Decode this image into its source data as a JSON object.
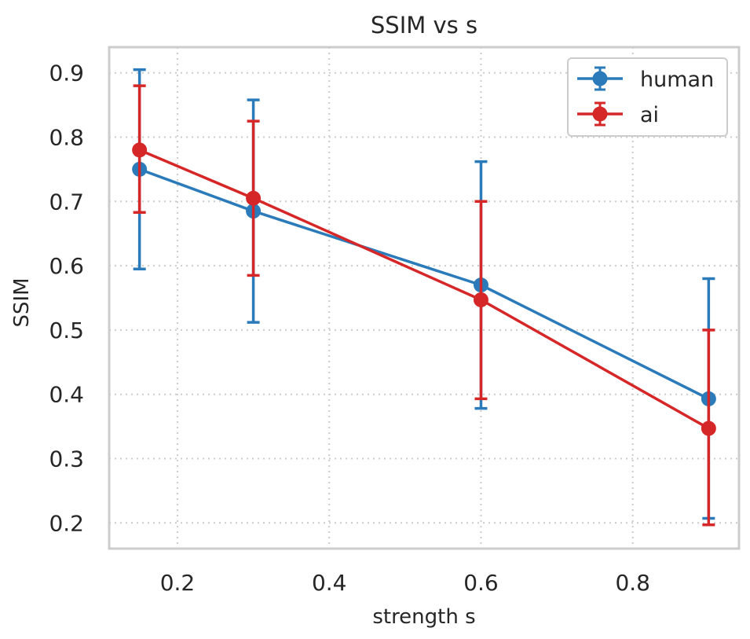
{
  "chart_data": {
    "type": "line",
    "title": "SSIM vs s",
    "xlabel": "strength s",
    "ylabel": "SSIM",
    "xlim": [
      0.11,
      0.94
    ],
    "ylim": [
      0.16,
      0.94
    ],
    "xticks": [
      0.2,
      0.4,
      0.6,
      0.8
    ],
    "xtick_labels": [
      "0.2",
      "0.4",
      "0.6",
      "0.8"
    ],
    "yticks": [
      0.2,
      0.3,
      0.4,
      0.5,
      0.6,
      0.7,
      0.8,
      0.9
    ],
    "ytick_labels": [
      "0.2",
      "0.3",
      "0.4",
      "0.5",
      "0.6",
      "0.7",
      "0.8",
      "0.9"
    ],
    "grid": true,
    "legend_position": "top-right",
    "x": [
      0.15,
      0.3,
      0.6,
      0.9
    ],
    "series": [
      {
        "name": "human",
        "color": "#2b7bba",
        "values": [
          0.75,
          0.685,
          0.57,
          0.393
        ],
        "err_low": [
          0.595,
          0.512,
          0.378,
          0.207
        ],
        "err_high": [
          0.905,
          0.858,
          0.762,
          0.58
        ]
      },
      {
        "name": "ai",
        "color": "#d62728",
        "values": [
          0.78,
          0.705,
          0.547,
          0.347
        ],
        "err_low": [
          0.683,
          0.585,
          0.393,
          0.197
        ],
        "err_high": [
          0.88,
          0.825,
          0.7,
          0.5
        ]
      }
    ]
  }
}
